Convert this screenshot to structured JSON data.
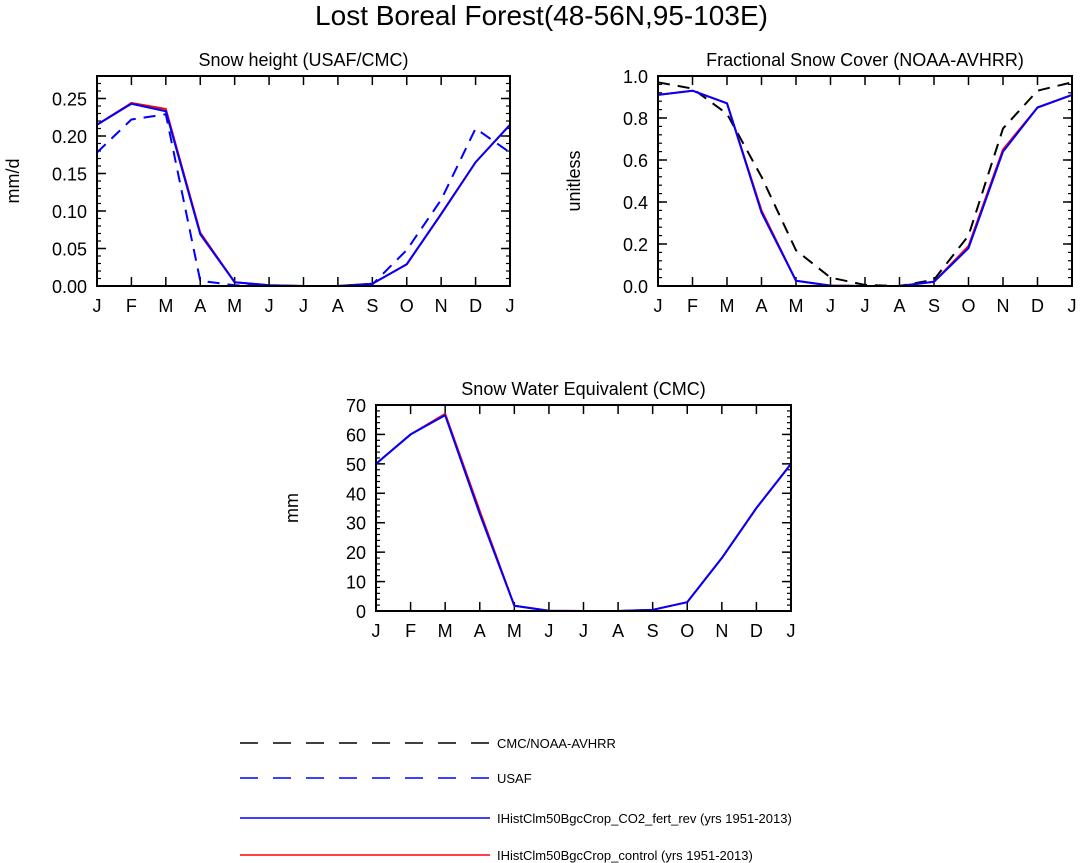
{
  "figure": {
    "title": "Lost Boreal Forest(48-56N,95-103E)"
  },
  "legend": {
    "entries": [
      {
        "label": "CMC/NOAA-AVHRR",
        "color": "#000000",
        "style": "dashed"
      },
      {
        "label": "USAF",
        "color": "#0000ff",
        "style": "dashed"
      },
      {
        "label": "IHistClm50BgcCrop_CO2_fert_rev (yrs 1951-2013)",
        "color": "#0000ff",
        "style": "solid"
      },
      {
        "label": "IHistClm50BgcCrop_control (yrs 1951-2013)",
        "color": "#ff0000",
        "style": "solid"
      }
    ]
  },
  "chart_data": [
    {
      "id": "snow-height",
      "type": "line",
      "title": "Snow height (USAF/CMC)",
      "xlabel": "",
      "ylabel": "mm/d",
      "categories": [
        "J",
        "F",
        "M",
        "A",
        "M",
        "J",
        "J",
        "A",
        "S",
        "O",
        "N",
        "D",
        "J"
      ],
      "ylim": [
        0,
        0.28
      ],
      "yticks": [
        0,
        0.05,
        0.1,
        0.15,
        0.2,
        0.25
      ],
      "ytick_labels": [
        "0.00",
        "0.05",
        "0.10",
        "0.15",
        "0.20",
        "0.25"
      ],
      "series": [
        {
          "name": "CMC/NOAA-AVHRR",
          "color": "#000000",
          "dash": true,
          "values": [
            0,
            0,
            0,
            0,
            0,
            0,
            0,
            0,
            0,
            0,
            0,
            0,
            0
          ]
        },
        {
          "name": "USAF",
          "color": "#0000ff",
          "dash": true,
          "values": [
            0.178,
            0.222,
            0.229,
            0.007,
            0.001,
            0,
            0,
            0,
            0.002,
            0.048,
            0.115,
            0.21,
            0.178
          ]
        },
        {
          "name": "IHistClm50BgcCrop_control (yrs 1951-2013)",
          "color": "#ff0000",
          "dash": false,
          "values": [
            0.215,
            0.244,
            0.236,
            0.071,
            0.005,
            0.001,
            0,
            0,
            0.003,
            0.029,
            0.096,
            0.165,
            0.215
          ]
        },
        {
          "name": "IHistClm50BgcCrop_CO2_fert_rev (yrs 1951-2013)",
          "color": "#0000ff",
          "dash": false,
          "values": [
            0.215,
            0.243,
            0.233,
            0.069,
            0.005,
            0.001,
            0,
            0,
            0.003,
            0.029,
            0.096,
            0.165,
            0.215
          ]
        }
      ]
    },
    {
      "id": "fractional-snow-cover",
      "type": "line",
      "title": "Fractional Snow Cover (NOAA-AVHRR)",
      "xlabel": "",
      "ylabel": "unitless",
      "categories": [
        "J",
        "F",
        "M",
        "A",
        "M",
        "J",
        "J",
        "A",
        "S",
        "O",
        "N",
        "D",
        "J"
      ],
      "ylim": [
        0,
        1.0
      ],
      "yticks": [
        0,
        0.2,
        0.4,
        0.6,
        0.8,
        1.0
      ],
      "ytick_labels": [
        "0.0",
        "0.2",
        "0.4",
        "0.6",
        "0.8",
        "1.0"
      ],
      "series": [
        {
          "name": "CMC/NOAA-AVHRR",
          "color": "#000000",
          "dash": true,
          "values": [
            0.97,
            0.94,
            0.82,
            0.52,
            0.17,
            0.04,
            0.005,
            0,
            0.03,
            0.24,
            0.75,
            0.93,
            0.97
          ]
        },
        {
          "name": "IHistClm50BgcCrop_control (yrs 1951-2013)",
          "color": "#ff0000",
          "dash": false,
          "values": [
            0.91,
            0.93,
            0.87,
            0.36,
            0.025,
            0.002,
            0,
            0,
            0.02,
            0.19,
            0.65,
            0.85,
            0.91
          ]
        },
        {
          "name": "IHistClm50BgcCrop_CO2_fert_rev (yrs 1951-2013)",
          "color": "#0000ff",
          "dash": false,
          "values": [
            0.91,
            0.93,
            0.87,
            0.35,
            0.025,
            0.002,
            0,
            0,
            0.02,
            0.18,
            0.64,
            0.85,
            0.91
          ]
        }
      ]
    },
    {
      "id": "snow-water-equivalent",
      "type": "line",
      "title": "Snow Water Equivalent (CMC)",
      "xlabel": "",
      "ylabel": "mm",
      "categories": [
        "J",
        "F",
        "M",
        "A",
        "M",
        "J",
        "J",
        "A",
        "S",
        "O",
        "N",
        "D",
        "J"
      ],
      "ylim": [
        0,
        70
      ],
      "yticks": [
        0,
        10,
        20,
        30,
        40,
        50,
        60,
        70
      ],
      "ytick_labels": [
        "0",
        "10",
        "20",
        "30",
        "40",
        "50",
        "60",
        "70"
      ],
      "series": [
        {
          "name": "CMC/NOAA-AVHRR",
          "color": "#000000",
          "dash": true,
          "values": [
            0,
            0,
            0,
            0,
            0,
            0,
            0,
            0,
            0,
            0,
            0,
            0,
            0
          ]
        },
        {
          "name": "IHistClm50BgcCrop_control (yrs 1951-2013)",
          "color": "#ff0000",
          "dash": false,
          "values": [
            50,
            60,
            67,
            34,
            1.8,
            0.1,
            0,
            0,
            0.4,
            3,
            18,
            35,
            50
          ]
        },
        {
          "name": "IHistClm50BgcCrop_CO2_fert_rev (yrs 1951-2013)",
          "color": "#0000ff",
          "dash": false,
          "values": [
            50,
            60,
            66.5,
            33,
            1.8,
            0.1,
            0,
            0,
            0.4,
            3,
            18,
            35,
            50
          ]
        }
      ]
    }
  ]
}
